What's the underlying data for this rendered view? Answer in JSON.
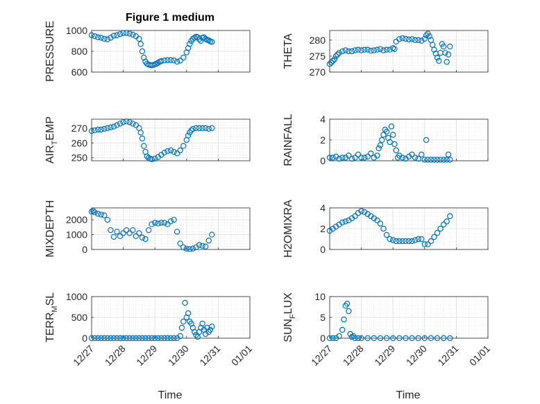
{
  "title": "Figure 1 medium",
  "marker_color": "#0072BD",
  "x_tick_labels": [
    "12/27",
    "12/28",
    "12/29",
    "12/30",
    "12/31",
    "01/01"
  ],
  "x_label": "Time",
  "chart_data": [
    {
      "type": "scatter",
      "id": "pressure",
      "ylabel": "PRESSURE",
      "ylabel_main": "PRESSURE",
      "ylabel_sub": "",
      "ylabel_tail": "",
      "xlim": [
        0,
        5
      ],
      "ylim": [
        600,
        1000
      ],
      "yticks": [
        600,
        800,
        1000
      ],
      "x": [
        0,
        0.1,
        0.2,
        0.3,
        0.4,
        0.5,
        0.6,
        0.7,
        0.8,
        0.9,
        1.0,
        1.1,
        1.2,
        1.3,
        1.4,
        1.5,
        1.55,
        1.6,
        1.65,
        1.7,
        1.75,
        1.8,
        1.85,
        1.9,
        1.95,
        2.0,
        2.05,
        2.1,
        2.15,
        2.2,
        2.3,
        2.4,
        2.5,
        2.6,
        2.7,
        2.8,
        2.9,
        3.0,
        3.05,
        3.1,
        3.15,
        3.2,
        3.25,
        3.3,
        3.35,
        3.4,
        3.45,
        3.5,
        3.55,
        3.6,
        3.65,
        3.7,
        3.75,
        3.8
      ],
      "y": [
        955,
        945,
        935,
        930,
        920,
        915,
        930,
        950,
        955,
        965,
        975,
        975,
        970,
        960,
        945,
        920,
        870,
        800,
        740,
        700,
        680,
        672,
        668,
        665,
        668,
        675,
        680,
        690,
        700,
        705,
        712,
        715,
        715,
        712,
        700,
        710,
        740,
        790,
        830,
        870,
        900,
        920,
        930,
        940,
        935,
        915,
        900,
        930,
        935,
        920,
        910,
        905,
        895,
        890
      ]
    },
    {
      "type": "scatter",
      "id": "theta",
      "ylabel": "THETA",
      "ylabel_main": "THETA",
      "ylabel_sub": "",
      "ylabel_tail": "",
      "xlim": [
        0,
        5
      ],
      "ylim": [
        270,
        283
      ],
      "yticks": [
        270,
        275,
        280
      ],
      "x": [
        0,
        0.05,
        0.1,
        0.15,
        0.2,
        0.25,
        0.3,
        0.4,
        0.5,
        0.6,
        0.7,
        0.8,
        0.9,
        1.0,
        1.1,
        1.2,
        1.3,
        1.4,
        1.5,
        1.6,
        1.7,
        1.8,
        1.9,
        2.0,
        2.05,
        2.1,
        2.2,
        2.3,
        2.4,
        2.5,
        2.6,
        2.7,
        2.8,
        2.9,
        3.0,
        3.05,
        3.1,
        3.15,
        3.2,
        3.25,
        3.3,
        3.35,
        3.4,
        3.45,
        3.5,
        3.55,
        3.6,
        3.65,
        3.7,
        3.75,
        3.8
      ],
      "y": [
        272.5,
        273,
        273.5,
        274,
        275,
        275.5,
        276,
        276.5,
        276.8,
        276.5,
        276.5,
        276.8,
        277,
        276.8,
        277,
        277,
        276.7,
        276.8,
        277,
        277.2,
        276.8,
        277,
        277,
        277.5,
        277.2,
        279.5,
        280.3,
        280.6,
        280.4,
        280.2,
        280.3,
        280,
        280,
        279.8,
        280.4,
        281.5,
        282,
        281.2,
        280,
        278.5,
        277,
        275.8,
        274.5,
        273.5,
        276,
        278.8,
        278,
        276,
        273.2,
        275.5,
        278
      ]
    },
    {
      "type": "scatter",
      "id": "air_temp",
      "ylabel": "AIR_TEMP",
      "ylabel_main": "AIR",
      "ylabel_sub": "T",
      "ylabel_tail": "EMP",
      "xlim": [
        0,
        5
      ],
      "ylim": [
        248,
        276
      ],
      "yticks": [
        250,
        260,
        270
      ],
      "x": [
        0,
        0.1,
        0.2,
        0.3,
        0.4,
        0.5,
        0.6,
        0.7,
        0.8,
        0.9,
        1.0,
        1.1,
        1.2,
        1.3,
        1.4,
        1.5,
        1.55,
        1.6,
        1.65,
        1.7,
        1.75,
        1.8,
        1.85,
        1.9,
        2.0,
        2.1,
        2.2,
        2.3,
        2.4,
        2.5,
        2.6,
        2.7,
        2.8,
        2.9,
        3.0,
        3.05,
        3.1,
        3.15,
        3.2,
        3.3,
        3.4,
        3.5,
        3.6,
        3.7,
        3.8
      ],
      "y": [
        268,
        268.5,
        269,
        269,
        269.5,
        270,
        270.5,
        271,
        272,
        273,
        274,
        274.5,
        274,
        273,
        272,
        270,
        267,
        263,
        258,
        254,
        251,
        250,
        249.5,
        249,
        249.5,
        250.5,
        252,
        253.5,
        254.5,
        255,
        254,
        253,
        255,
        258,
        262,
        265,
        267,
        268.5,
        269.5,
        270,
        270,
        270,
        270,
        269.5,
        270
      ]
    },
    {
      "type": "scatter",
      "id": "rainfall",
      "ylabel": "RAINFALL",
      "ylabel_main": "RAINFALL",
      "ylabel_sub": "",
      "ylabel_tail": "",
      "xlim": [
        0,
        5
      ],
      "ylim": [
        0,
        4
      ],
      "yticks": [
        0,
        2,
        4
      ],
      "x": [
        0,
        0.1,
        0.2,
        0.3,
        0.4,
        0.5,
        0.6,
        0.7,
        0.8,
        0.9,
        1.0,
        1.1,
        1.2,
        1.3,
        1.4,
        1.5,
        1.55,
        1.6,
        1.65,
        1.7,
        1.75,
        1.8,
        1.85,
        1.9,
        1.95,
        2.0,
        2.05,
        2.1,
        2.15,
        2.2,
        2.3,
        2.4,
        2.5,
        2.6,
        2.7,
        2.8,
        2.9,
        3.0,
        3.05,
        3.1,
        3.2,
        3.3,
        3.4,
        3.5,
        3.6,
        3.7,
        3.75,
        3.8
      ],
      "y": [
        0.3,
        0.3,
        0.4,
        0.2,
        0.3,
        0.3,
        0.5,
        0.2,
        0.3,
        0.6,
        0.3,
        0.3,
        0.4,
        0.7,
        0.3,
        0.5,
        1.2,
        1.5,
        2.0,
        2.5,
        3.0,
        2.8,
        2.2,
        1.8,
        3.3,
        2.5,
        1.6,
        1.0,
        0.3,
        0.5,
        0.3,
        0.2,
        0.4,
        0.6,
        0.3,
        0.2,
        0.6,
        0.1,
        2.0,
        0.1,
        0.1,
        0.1,
        0.1,
        0.1,
        0.1,
        0.1,
        0.6,
        0.1
      ]
    },
    {
      "type": "scatter",
      "id": "mixdepth",
      "ylabel": "MIXDEPTH",
      "ylabel_main": "MIXDEPTH",
      "ylabel_sub": "",
      "ylabel_tail": "",
      "xlim": [
        0,
        5
      ],
      "ylim": [
        0,
        2800
      ],
      "yticks": [
        0,
        1000,
        2000
      ],
      "x": [
        0,
        0.05,
        0.1,
        0.2,
        0.3,
        0.4,
        0.5,
        0.6,
        0.7,
        0.8,
        0.9,
        1.0,
        1.1,
        1.2,
        1.3,
        1.4,
        1.5,
        1.6,
        1.7,
        1.8,
        1.9,
        2.0,
        2.1,
        2.2,
        2.3,
        2.4,
        2.5,
        2.6,
        2.7,
        2.8,
        2.9,
        3.0,
        3.1,
        3.2,
        3.3,
        3.4,
        3.5,
        3.6,
        3.7,
        3.8
      ],
      "y": [
        2550,
        2600,
        2500,
        2400,
        2350,
        2300,
        2000,
        1300,
        850,
        1200,
        900,
        1100,
        1300,
        1100,
        1300,
        900,
        1100,
        800,
        700,
        1300,
        1700,
        1800,
        1750,
        1800,
        1800,
        1700,
        1900,
        2000,
        1200,
        400,
        150,
        50,
        30,
        60,
        150,
        300,
        250,
        200,
        600,
        1000
      ]
    },
    {
      "type": "scatter",
      "id": "h2omixra",
      "ylabel": "H2OMIXRA",
      "ylabel_main": "H2OMIXRA",
      "ylabel_sub": "",
      "ylabel_tail": "",
      "xlim": [
        0,
        5
      ],
      "ylim": [
        0,
        4
      ],
      "yticks": [
        0,
        2,
        4
      ],
      "x": [
        0,
        0.1,
        0.2,
        0.3,
        0.4,
        0.5,
        0.6,
        0.7,
        0.8,
        0.9,
        1.0,
        1.1,
        1.2,
        1.3,
        1.4,
        1.5,
        1.6,
        1.7,
        1.8,
        1.9,
        2.0,
        2.1,
        2.2,
        2.3,
        2.4,
        2.5,
        2.6,
        2.7,
        2.8,
        2.9,
        3.0,
        3.1,
        3.2,
        3.3,
        3.4,
        3.5,
        3.6,
        3.7,
        3.8
      ],
      "y": [
        1.8,
        2.0,
        2.2,
        2.4,
        2.6,
        2.7,
        2.8,
        3.0,
        3.2,
        3.5,
        3.7,
        3.6,
        3.4,
        3.2,
        3.0,
        2.8,
        2.5,
        2.0,
        1.4,
        1.0,
        0.9,
        0.8,
        0.8,
        0.8,
        0.8,
        0.8,
        0.8,
        0.9,
        1.0,
        1.0,
        0.5,
        0.5,
        0.8,
        1.2,
        1.6,
        2.0,
        2.4,
        2.7,
        3.2
      ]
    },
    {
      "type": "scatter",
      "id": "terr_msl",
      "ylabel": "TERR_MSL",
      "ylabel_main": "TERR",
      "ylabel_sub": "M",
      "ylabel_tail": "SL",
      "xlim": [
        0,
        5
      ],
      "ylim": [
        0,
        1000
      ],
      "yticks": [
        0,
        500,
        1000
      ],
      "x": [
        0,
        0.1,
        0.2,
        0.3,
        0.4,
        0.5,
        0.6,
        0.7,
        0.8,
        0.9,
        1.0,
        1.1,
        1.2,
        1.3,
        1.4,
        1.5,
        1.6,
        1.7,
        1.8,
        1.9,
        2.0,
        2.1,
        2.2,
        2.3,
        2.4,
        2.5,
        2.6,
        2.7,
        2.8,
        2.85,
        2.9,
        2.95,
        3.0,
        3.05,
        3.1,
        3.15,
        3.2,
        3.25,
        3.3,
        3.35,
        3.4,
        3.45,
        3.5,
        3.55,
        3.6,
        3.65,
        3.7,
        3.75,
        3.8
      ],
      "y": [
        0,
        0,
        0,
        0,
        0,
        0,
        0,
        0,
        0,
        0,
        0,
        0,
        0,
        0,
        0,
        0,
        0,
        0,
        0,
        0,
        0,
        0,
        0,
        0,
        0,
        0,
        0,
        0,
        50,
        250,
        400,
        850,
        500,
        600,
        400,
        350,
        250,
        150,
        80,
        30,
        150,
        250,
        350,
        200,
        100,
        250,
        150,
        200,
        280
      ]
    },
    {
      "type": "scatter",
      "id": "sun_flux",
      "ylabel": "SUN_FLUX",
      "ylabel_main": "SUN",
      "ylabel_sub": "F",
      "ylabel_tail": "LUX",
      "xlim": [
        0,
        5
      ],
      "ylim": [
        0,
        10
      ],
      "yticks": [
        0,
        5,
        10
      ],
      "x": [
        0,
        0.1,
        0.2,
        0.3,
        0.4,
        0.45,
        0.5,
        0.55,
        0.6,
        0.65,
        0.7,
        0.75,
        0.8,
        0.9,
        1.0,
        1.2,
        1.4,
        1.6,
        1.8,
        2.0,
        2.2,
        2.4,
        2.6,
        2.8,
        3.0,
        3.2,
        3.4,
        3.6,
        3.8
      ],
      "y": [
        0,
        0,
        0,
        0.5,
        2.0,
        4.5,
        7.8,
        8.3,
        6.5,
        1.0,
        0.3,
        0.5,
        0,
        0,
        0,
        0,
        0,
        0,
        0,
        0,
        0,
        0,
        0,
        0,
        0,
        0,
        0,
        0,
        0
      ]
    }
  ]
}
